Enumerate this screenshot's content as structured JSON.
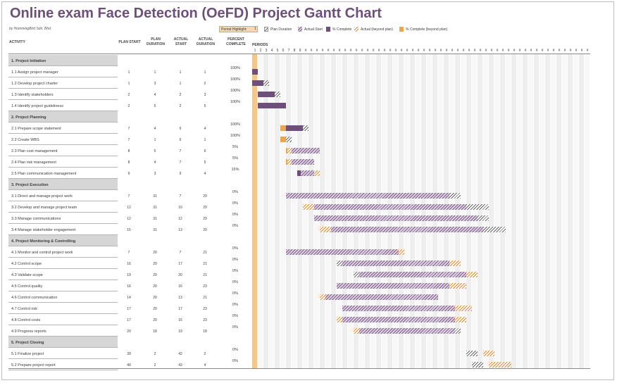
{
  "title": "Online exam Face Detection (OeFD) Project Gantt Chart",
  "author": "by HummingBird Sdn. Bhd.",
  "period_highlight": {
    "label": "Period Highlight:",
    "value": "1"
  },
  "legend": {
    "plan_duration": "Plan Duration",
    "actual_start": "Actual Start",
    "pct_complete": "% Complete",
    "actual_beyond": "Actual (beyond plan)",
    "pct_beyond": "% Complete (beyond plan)"
  },
  "headers": {
    "activity": "ACTIVITY",
    "plan_start": "PLAN START",
    "plan_duration": "PLAN DURATION",
    "actual_start": "ACTUAL START",
    "actual_duration": "ACTUAL DURATION",
    "percent_complete": "PERCENT COMPLETE",
    "periods": "PERIODS"
  },
  "period_numbers": [
    "1",
    "2",
    "3",
    "4",
    "5",
    "6",
    "7",
    "8",
    "9",
    "#",
    "#",
    "#",
    "#",
    "#",
    "#",
    "#",
    "#",
    "#",
    "#",
    "#",
    "#",
    "#",
    "#",
    "#",
    "#",
    "#",
    "#",
    "#",
    "#",
    "#",
    "#",
    "#",
    "#",
    "#",
    "#",
    "#",
    "#",
    "#",
    "#",
    "#",
    "#",
    "#",
    "#",
    "#",
    "#",
    "#",
    "#",
    "#",
    "#",
    "#",
    "#",
    "#",
    "#",
    "#",
    "#",
    "#",
    "#",
    "#",
    "#",
    "#"
  ],
  "rows": [
    {
      "type": "phase",
      "name": "1. Project Initiation"
    },
    {
      "type": "task",
      "name": "1.1 Assign project manager",
      "ps": "1",
      "pd": "1",
      "as": "1",
      "ad": "1",
      "pct": "100%",
      "psn": 1,
      "pdn": 1,
      "asn": 1,
      "adn": 1,
      "p": 100
    },
    {
      "type": "task",
      "name": "1.2 Develop project charter",
      "ps": "1",
      "pd": "3",
      "as": "1",
      "ad": "2",
      "pct": "100%",
      "psn": 1,
      "pdn": 3,
      "asn": 1,
      "adn": 2,
      "p": 100
    },
    {
      "type": "task",
      "name": "1.3 Identify stakeholders",
      "ps": "2",
      "pd": "4",
      "as": "2",
      "ad": "3",
      "pct": "100%",
      "psn": 2,
      "pdn": 4,
      "asn": 2,
      "adn": 3,
      "p": 100
    },
    {
      "type": "task",
      "name": "1.4 Identify project guideliness",
      "ps": "2",
      "pd": "5",
      "as": "2",
      "ad": "5",
      "pct": "100%",
      "psn": 2,
      "pdn": 5,
      "asn": 2,
      "adn": 5,
      "p": 100
    },
    {
      "type": "phase",
      "name": "2. Project Planning"
    },
    {
      "type": "task",
      "name": "2.1 Prepare scope statement",
      "ps": "7",
      "pd": "4",
      "as": "6",
      "ad": "4",
      "pct": "100%",
      "psn": 7,
      "pdn": 4,
      "asn": 6,
      "adn": 4,
      "p": 100
    },
    {
      "type": "task",
      "name": "2.2 Create WBS",
      "ps": "7",
      "pd": "1",
      "as": "6",
      "ad": "1",
      "pct": "100%",
      "psn": 7,
      "pdn": 1,
      "asn": 6,
      "adn": 1,
      "p": 100
    },
    {
      "type": "task",
      "name": "2.3 Plan cost management",
      "ps": "8",
      "pd": "5",
      "as": "7",
      "ad": "6",
      "pct": "5%",
      "psn": 8,
      "pdn": 5,
      "asn": 7,
      "adn": 6,
      "p": 5
    },
    {
      "type": "task",
      "name": "2.4 Plan risk management",
      "ps": "8",
      "pd": "4",
      "as": "7",
      "ad": "5",
      "pct": "5%",
      "psn": 8,
      "pdn": 4,
      "asn": 7,
      "adn": 5,
      "p": 5
    },
    {
      "type": "task",
      "name": "2.5 Plan communication management",
      "ps": "9",
      "pd": "3",
      "as": "9",
      "ad": "4",
      "pct": "15%",
      "psn": 9,
      "pdn": 3,
      "asn": 9,
      "adn": 4,
      "p": 15
    },
    {
      "type": "phase",
      "name": "3. Project Execution"
    },
    {
      "type": "task",
      "name": "3.1 Direct and manage project work",
      "ps": "7",
      "pd": "31",
      "as": "7",
      "ad": "29",
      "pct": "0%",
      "psn": 7,
      "pdn": 31,
      "asn": 7,
      "adn": 29,
      "p": 0
    },
    {
      "type": "task",
      "name": "3.2 Develop and manage project team",
      "ps": "12",
      "pd": "31",
      "as": "10",
      "ad": "29",
      "pct": "0%",
      "psn": 12,
      "pdn": 31,
      "asn": 10,
      "adn": 29,
      "p": 0
    },
    {
      "type": "task",
      "name": "3.3 Manage communications",
      "ps": "12",
      "pd": "31",
      "as": "12",
      "ad": "29",
      "pct": "0%",
      "psn": 12,
      "pdn": 31,
      "asn": 12,
      "adn": 29,
      "p": 0
    },
    {
      "type": "task",
      "name": "3.4 Manage stakeholder engagement",
      "ps": "15",
      "pd": "31",
      "as": "13",
      "ad": "29",
      "pct": "0%",
      "psn": 15,
      "pdn": 31,
      "asn": 13,
      "adn": 29,
      "p": 0
    },
    {
      "type": "phase",
      "name": "4. Project Monitoring & Controlling"
    },
    {
      "type": "task",
      "name": "4.1 Monitor and control project work",
      "ps": "7",
      "pd": "20",
      "as": "7",
      "ad": "21",
      "pct": "0%",
      "psn": 7,
      "pdn": 20,
      "asn": 7,
      "adn": 21,
      "p": 0
    },
    {
      "type": "task",
      "name": "4.2 Control scope",
      "ps": "16",
      "pd": "20",
      "as": "17",
      "ad": "21",
      "pct": "0%",
      "psn": 16,
      "pdn": 20,
      "asn": 17,
      "adn": 21,
      "p": 0
    },
    {
      "type": "task",
      "name": "4.3 Validate scope",
      "ps": "19",
      "pd": "20",
      "as": "20",
      "ad": "21",
      "pct": "0%",
      "psn": 19,
      "pdn": 20,
      "asn": 20,
      "adn": 21,
      "p": 0
    },
    {
      "type": "task",
      "name": "4.5 Control quality",
      "ps": "16",
      "pd": "20",
      "as": "16",
      "ad": "23",
      "pct": "0%",
      "psn": 16,
      "pdn": 20,
      "asn": 16,
      "adn": 23,
      "p": 0
    },
    {
      "type": "task",
      "name": "4.6 Control communication",
      "ps": "14",
      "pd": "20",
      "as": "13",
      "ad": "21",
      "pct": "0%",
      "psn": 14,
      "pdn": 20,
      "asn": 13,
      "adn": 21,
      "p": 0
    },
    {
      "type": "task",
      "name": "4.7 Control risk",
      "ps": "17",
      "pd": "20",
      "as": "17",
      "ad": "23",
      "pct": "0%",
      "psn": 17,
      "pdn": 20,
      "asn": 17,
      "adn": 23,
      "p": 0
    },
    {
      "type": "task",
      "name": "4.8 Control costs",
      "ps": "17",
      "pd": "20",
      "as": "16",
      "ad": "23",
      "pct": "0%",
      "psn": 17,
      "pdn": 20,
      "asn": 16,
      "adn": 23,
      "p": 0
    },
    {
      "type": "task",
      "name": "4.9 Progress reports",
      "ps": "20",
      "pd": "18",
      "as": "19",
      "ad": "18",
      "pct": "0%",
      "psn": 20,
      "pdn": 18,
      "asn": 19,
      "adn": 18,
      "p": 0
    },
    {
      "type": "phase",
      "name": "5. Project Closing"
    },
    {
      "type": "task",
      "name": "5.1 Finalize project",
      "ps": "39",
      "pd": "2",
      "as": "42",
      "ad": "2",
      "pct": "0%",
      "psn": 39,
      "pdn": 2,
      "asn": 42,
      "adn": 2,
      "p": 0
    },
    {
      "type": "task",
      "name": "5.2 Prepare project report",
      "ps": "40",
      "pd": "2",
      "as": "43",
      "ad": "4",
      "pct": "0%",
      "psn": 40,
      "pdn": 2,
      "asn": 43,
      "adn": 4,
      "p": 0
    }
  ],
  "colors": {
    "actual": "#7d5f88",
    "pct": "#6e4f79",
    "beyond": "#e9a84d",
    "plan_hatch": "#666666",
    "highlight": "#f2c78b"
  }
}
